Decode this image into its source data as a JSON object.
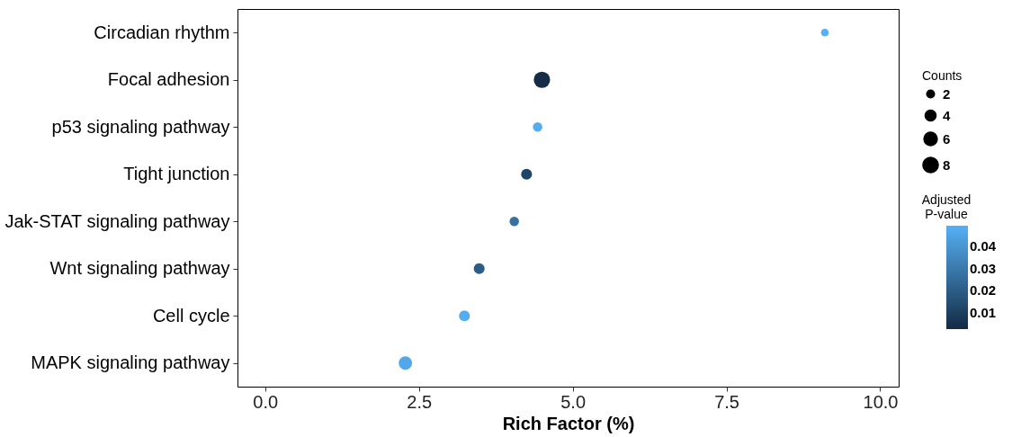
{
  "chart_data": {
    "type": "bubble",
    "orientation": "horizontal",
    "xlabel": "Rich Factor (%)",
    "categories": [
      "Circadian rhythm",
      "Focal adhesion",
      "p53 signaling pathway",
      "Tight junction",
      "Jak-STAT signaling pathway",
      "Wnt signaling pathway",
      "Cell cycle",
      "MAPK signaling pathway"
    ],
    "values": [
      9.1,
      4.5,
      4.43,
      4.25,
      4.05,
      3.48,
      3.24,
      2.28
    ],
    "sizes": [
      2,
      9,
      3,
      4,
      3,
      4,
      4,
      6
    ],
    "size_legend": [
      2,
      4,
      6,
      8
    ],
    "legend_title": "Counts",
    "cvalues": [
      0.049,
      0.003,
      0.048,
      0.012,
      0.027,
      0.02,
      0.048,
      0.046
    ],
    "clabel": "Adjusted P-value",
    "clim": [
      0.0026,
      0.0495
    ],
    "cticks": [
      0.01,
      0.02,
      0.03,
      0.04
    ],
    "colors": [
      "#55b0f5",
      "#142c45",
      "#54adf1",
      "#204667",
      "#3671a1",
      "#2c5d86",
      "#54adf1",
      "#51a7e9"
    ],
    "xlim": [
      -0.45,
      10.3
    ],
    "xticks": [
      {
        "value": 0,
        "label": "0.0"
      },
      {
        "value": 2.5,
        "label": "2.5"
      },
      {
        "value": 5,
        "label": "5.0"
      },
      {
        "value": 7.5,
        "label": "7.5"
      },
      {
        "value": 10,
        "label": "10.0"
      }
    ],
    "grid": false
  }
}
